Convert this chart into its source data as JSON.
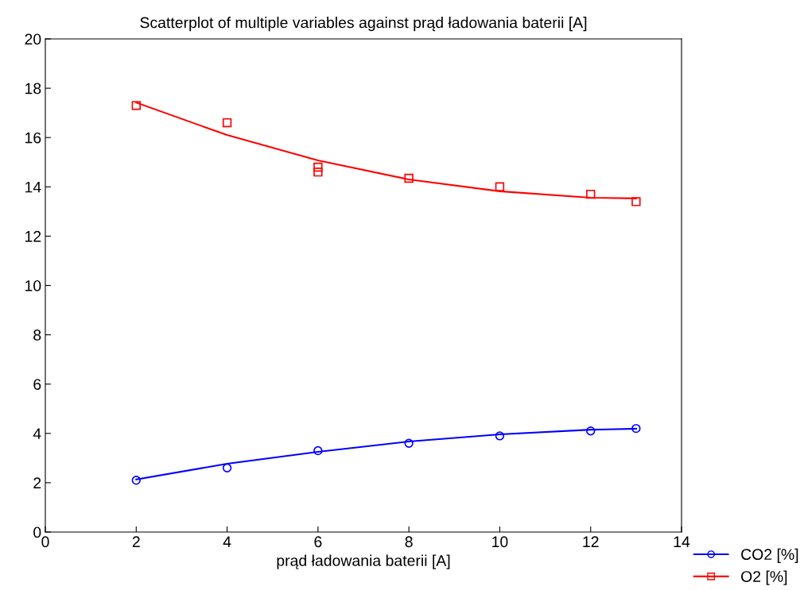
{
  "chart_data": {
    "type": "scatter",
    "title": "Scatterplot of multiple variables against prąd ładowania baterii [A]",
    "xlabel": "prąd ładowania baterii [A]",
    "xlim": [
      0,
      14
    ],
    "xticks": [
      0,
      2,
      4,
      6,
      8,
      10,
      12,
      14
    ],
    "ylim": [
      0,
      20
    ],
    "yticks": [
      0,
      2,
      4,
      6,
      8,
      10,
      12,
      14,
      16,
      18,
      20
    ],
    "grid": false,
    "legend": "bottom right",
    "series": [
      {
        "name": "CO2 [%]",
        "marker": "circle",
        "color": "#0000ff",
        "x": [
          2,
          4,
          6,
          8,
          10,
          12,
          13
        ],
        "values": [
          2.1,
          2.6,
          3.3,
          3.6,
          3.9,
          4.1,
          4.2
        ]
      },
      {
        "type": "line",
        "color": "#0000ff",
        "x": [
          2,
          4,
          6,
          8,
          10,
          12,
          13
        ],
        "values": [
          2.13,
          2.77,
          3.25,
          3.67,
          3.96,
          4.15,
          4.19
        ]
      },
      {
        "name": "O2 [%]",
        "marker": "square",
        "color": "#ff0000",
        "x": [
          2,
          4,
          6,
          6,
          8,
          10,
          12,
          13
        ],
        "values": [
          17.3,
          16.6,
          14.8,
          14.6,
          14.35,
          14.0,
          13.7,
          13.4
        ]
      },
      {
        "type": "line",
        "color": "#ff0000",
        "x": [
          2,
          4,
          6,
          8,
          10,
          12,
          13
        ],
        "values": [
          17.42,
          16.1,
          15.07,
          14.3,
          13.82,
          13.56,
          13.53
        ]
      }
    ]
  }
}
